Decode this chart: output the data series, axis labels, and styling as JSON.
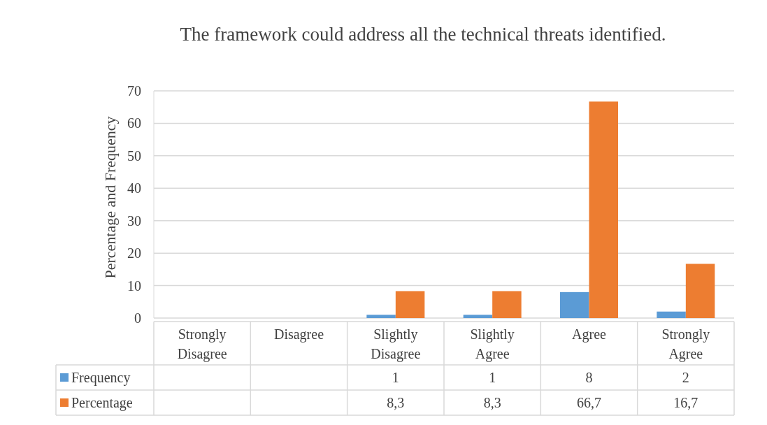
{
  "chart_data": {
    "type": "bar",
    "title": "The framework could address all the technical threats identified.",
    "ylabel": "Percentage and Frequency",
    "categories": [
      "Strongly Disagree",
      "Disagree",
      "Slightly Disagree",
      "Slightly Agree",
      "Agree",
      "Strongly Agree"
    ],
    "series": [
      {
        "name": "Frequency",
        "color": "#5b9bd5",
        "values": [
          null,
          null,
          1,
          1,
          8,
          2
        ],
        "value_labels": [
          null,
          null,
          "1",
          "1",
          "8",
          "2"
        ]
      },
      {
        "name": "Percentage",
        "color": "#ed7d31",
        "values": [
          null,
          null,
          8.3,
          8.3,
          66.7,
          16.7
        ],
        "value_labels": [
          null,
          null,
          "8,3",
          "8,3",
          "66,7",
          "16,7"
        ]
      }
    ],
    "ylim": [
      0,
      70
    ],
    "yticks": [
      0,
      10,
      20,
      30,
      40,
      50,
      60,
      70
    ],
    "grid": true,
    "legend": "bottom",
    "data_labels": true
  }
}
